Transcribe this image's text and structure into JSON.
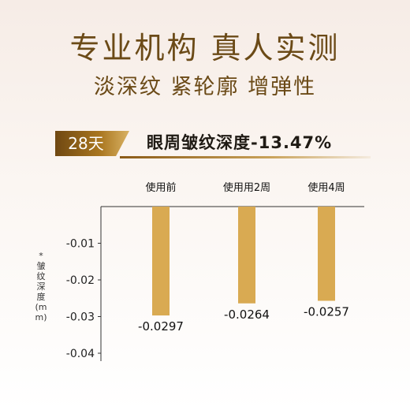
{
  "header": {
    "title": "专业机构  真人实测",
    "subtitle": "淡深纹 紧轮廓 增弹性"
  },
  "badge": {
    "label": "28天",
    "metric": "眼周皱纹深度-13.47%"
  },
  "colors": {
    "brand": "#6b4a17",
    "bar": "#d9aa52",
    "axis": "#333333"
  },
  "chart_data": {
    "type": "bar",
    "categories": [
      "使用前",
      "使用用2周",
      "使用4周"
    ],
    "values": [
      -0.0297,
      -0.0264,
      -0.0257
    ],
    "value_labels": [
      "-0.0297",
      "-0.0264",
      "-0.0257"
    ],
    "ylabel": "*皱纹深度(mm)",
    "ylim": [
      -0.04,
      0
    ],
    "yticks": [
      -0.01,
      -0.02,
      -0.03,
      -0.04
    ],
    "ytick_labels": [
      "-0.01",
      "-0.02",
      "-0.03",
      "-0.04"
    ],
    "grid": false,
    "legend": "none"
  }
}
